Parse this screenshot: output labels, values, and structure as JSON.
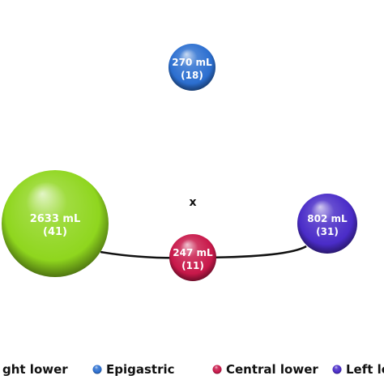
{
  "chart_data": {
    "type": "bubble",
    "center_marker": "x",
    "bubbles": [
      {
        "region": "Right lower",
        "volume_ml": 2633,
        "count": 41,
        "volume_label": "2633 mL",
        "count_label": "(41)",
        "color": "#8fd61e"
      },
      {
        "region": "Epigastric",
        "volume_ml": 270,
        "count": 18,
        "volume_label": "270 mL",
        "count_label": "(18)",
        "color": "#2c6fd0"
      },
      {
        "region": "Central lower",
        "volume_ml": 247,
        "count": 11,
        "volume_label": "247 mL",
        "count_label": "(11)",
        "color": "#c8184a"
      },
      {
        "region": "Left lower",
        "volume_ml": 802,
        "count": 31,
        "volume_label": "802 mL",
        "count_label": "(31)",
        "color": "#4a2cc8"
      }
    ],
    "legend": {
      "placement": "bottom",
      "entries": [
        {
          "label": "ght lower",
          "color": "#8fd61e"
        },
        {
          "label": "Epigastric",
          "color": "#2c6fd0"
        },
        {
          "label": "Central lower",
          "color": "#c8184a"
        },
        {
          "label": "Left lo",
          "color": "#4a2cc8"
        }
      ]
    }
  }
}
